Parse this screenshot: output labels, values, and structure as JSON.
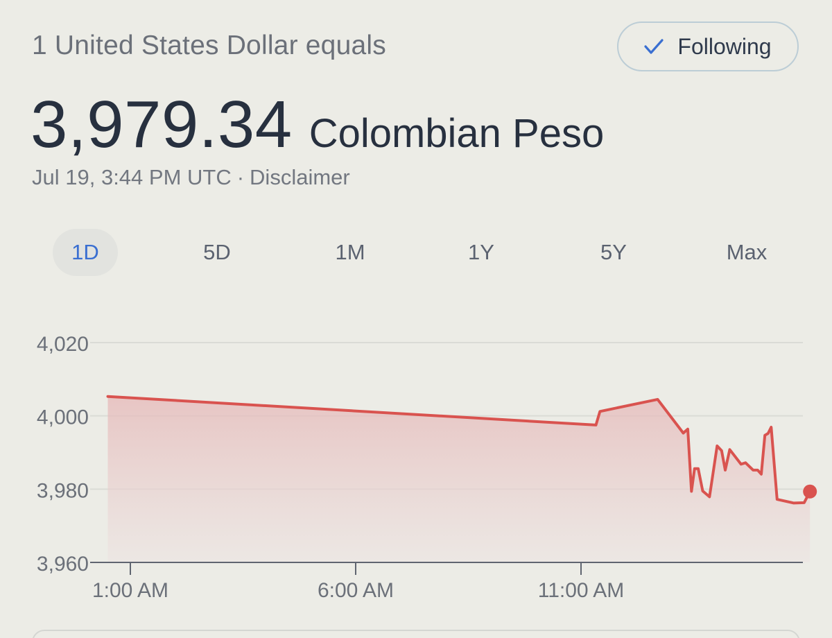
{
  "header": {
    "intro_text": "1 United States Dollar equals",
    "rate_value": "3,979.34",
    "rate_currency": "Colombian Peso",
    "timestamp": "Jul 19, 3:44 PM UTC",
    "separator": "·",
    "disclaimer_label": "Disclaimer"
  },
  "follow_button": {
    "label": "Following",
    "icon": "check-icon"
  },
  "ranges": [
    {
      "label": "1D",
      "active": true
    },
    {
      "label": "5D",
      "active": false
    },
    {
      "label": "1M",
      "active": false
    },
    {
      "label": "1Y",
      "active": false
    },
    {
      "label": "5Y",
      "active": false
    },
    {
      "label": "Max",
      "active": false
    }
  ],
  "colors": {
    "line": "#d9534f",
    "fill": "#e8b4b4",
    "accent": "#3a6fd1",
    "grid": "#dadbd6",
    "axis": "#6b7079"
  },
  "chart_data": {
    "type": "line",
    "title": "",
    "xlabel": "",
    "ylabel": "",
    "ylim": [
      3960,
      4020
    ],
    "yticks": [
      4020,
      4000,
      3980,
      3960
    ],
    "ytick_labels": [
      "4,020",
      "4,000",
      "3,980",
      "3,960"
    ],
    "xlim": [
      0.5,
      16.2
    ],
    "xticks": [
      1,
      6,
      11
    ],
    "xtick_labels": [
      "1:00 AM",
      "6:00 AM",
      "11:00 AM"
    ],
    "grid": true,
    "series": [
      {
        "x": [
          0.5,
          11.33,
          11.42,
          12.7,
          13.27,
          13.37,
          13.45,
          13.52,
          13.6,
          13.7,
          13.85,
          13.93,
          14.02,
          14.12,
          14.2,
          14.3,
          14.4,
          14.55,
          14.65,
          14.82,
          14.92,
          15.0,
          15.08,
          15.15,
          15.22,
          15.35,
          15.72,
          15.95
        ],
        "y": [
          4005.3,
          3997.5,
          4001.2,
          4004.5,
          3995.3,
          3996.4,
          3979.4,
          3985.6,
          3985.6,
          3979.5,
          3977.9,
          3984.3,
          3991.8,
          3990.5,
          3985.2,
          3990.8,
          3989.2,
          3986.8,
          3987.2,
          3985.2,
          3985.2,
          3984.1,
          3994.7,
          3995.2,
          3996.9,
          3977.2,
          3976.2,
          3976.3
        ]
      }
    ],
    "last_point": {
      "x": 16.08,
      "y": 3979.34
    }
  }
}
